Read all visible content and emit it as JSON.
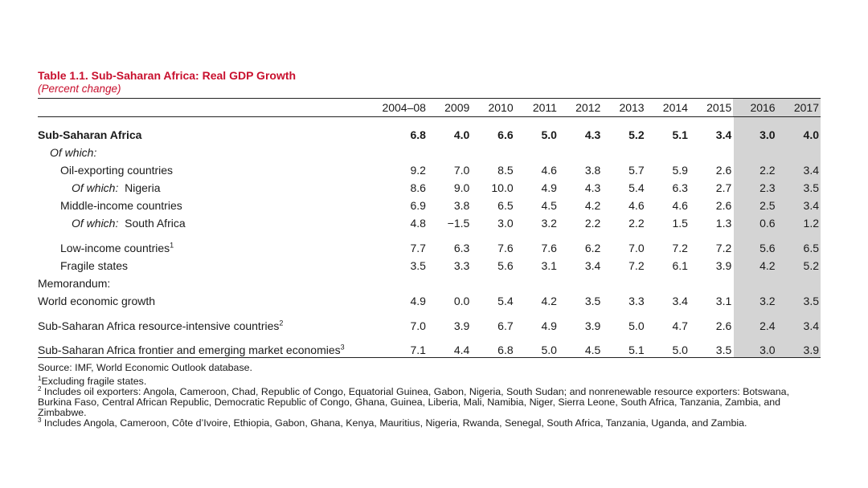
{
  "title": "Table 1.1. Sub-Saharan Africa: Real GDP Growth",
  "subtitle": "(Percent change)",
  "columns": [
    "2004–08",
    "2009",
    "2010",
    "2011",
    "2012",
    "2013",
    "2014",
    "2015",
    "2016",
    "2017"
  ],
  "rows": [
    {
      "prefix": "",
      "label": "Sub-Saharan Africa",
      "sup": "",
      "values": [
        "6.8",
        "4.0",
        "6.6",
        "5.0",
        "4.3",
        "5.2",
        "5.1",
        "3.4",
        "3.0",
        "4.0"
      ]
    },
    {
      "prefix": "",
      "label": "Of which:",
      "sup": "",
      "values": []
    },
    {
      "prefix": "",
      "label": "Oil-exporting countries",
      "sup": "",
      "values": [
        "9.2",
        "7.0",
        "8.5",
        "4.6",
        "3.8",
        "5.7",
        "5.9",
        "2.6",
        "2.2",
        "3.4"
      ]
    },
    {
      "prefix": "Of which:",
      "label": "Nigeria",
      "sup": "",
      "values": [
        "8.6",
        "9.0",
        "10.0",
        "4.9",
        "4.3",
        "5.4",
        "6.3",
        "2.7",
        "2.3",
        "3.5"
      ]
    },
    {
      "prefix": "",
      "label": "Middle-income countries",
      "sup": "",
      "values": [
        "6.9",
        "3.8",
        "6.5",
        "4.5",
        "4.2",
        "4.6",
        "4.6",
        "2.6",
        "2.5",
        "3.4"
      ]
    },
    {
      "prefix": "Of which:",
      "label": "South Africa",
      "sup": "",
      "values": [
        "4.8",
        "−1.5",
        "3.0",
        "3.2",
        "2.2",
        "2.2",
        "1.5",
        "1.3",
        "0.6",
        "1.2"
      ]
    },
    {
      "prefix": "",
      "label": "Low-income countries",
      "sup": "1",
      "values": [
        "7.7",
        "6.3",
        "7.6",
        "7.6",
        "6.2",
        "7.0",
        "7.2",
        "7.2",
        "5.6",
        "6.5"
      ]
    },
    {
      "prefix": "",
      "label": "Fragile states",
      "sup": "",
      "values": [
        "3.5",
        "3.3",
        "5.6",
        "3.1",
        "3.4",
        "7.2",
        "6.1",
        "3.9",
        "4.2",
        "5.2"
      ]
    },
    {
      "prefix": "",
      "label": "Memorandum:",
      "sup": "",
      "values": []
    },
    {
      "prefix": "",
      "label": "World economic growth",
      "sup": "",
      "values": [
        "4.9",
        "0.0",
        "5.4",
        "4.2",
        "3.5",
        "3.3",
        "3.4",
        "3.1",
        "3.2",
        "3.5"
      ]
    },
    {
      "prefix": "",
      "label": "Sub-Saharan Africa resource-intensive countries",
      "sup": "2",
      "values": [
        "7.0",
        "3.9",
        "6.7",
        "4.9",
        "3.9",
        "5.0",
        "4.7",
        "2.6",
        "2.4",
        "3.4"
      ]
    },
    {
      "prefix": "",
      "label": "Sub-Saharan Africa frontier and emerging market economies",
      "sup": "3",
      "values": [
        "7.1",
        "4.4",
        "6.8",
        "5.0",
        "4.5",
        "5.1",
        "5.0",
        "3.5",
        "3.0",
        "3.9"
      ]
    }
  ],
  "source": "Source: IMF, World Economic Outlook database.",
  "footnotes": [
    {
      "mark": "1",
      "text": "Excluding fragile states."
    },
    {
      "mark": "2",
      "text": "Includes oil exporters: Angola, Cameroon, Chad, Republic of Congo, Equatorial Guinea, Gabon, Nigeria, South Sudan; and nonrenewable resource exporters: Botswana, Burkina Faso, Central African Republic, Democratic Republic of Congo, Ghana, Guinea, Liberia, Mali, Namibia, Niger, Sierra Leone, South Africa, Tanzania, Zambia, and Zimbabwe."
    },
    {
      "mark": "3",
      "text": "Includes Angola, Cameroon, Côte d’Ivoire, Ethiopia, Gabon, Ghana, Kenya, Mauritius, Nigeria, Rwanda, Senegal, South Africa, Tanzania, Uganda, and Zambia."
    }
  ],
  "colors": {
    "title": "#c8102e",
    "shade": "#d4d4d4"
  }
}
